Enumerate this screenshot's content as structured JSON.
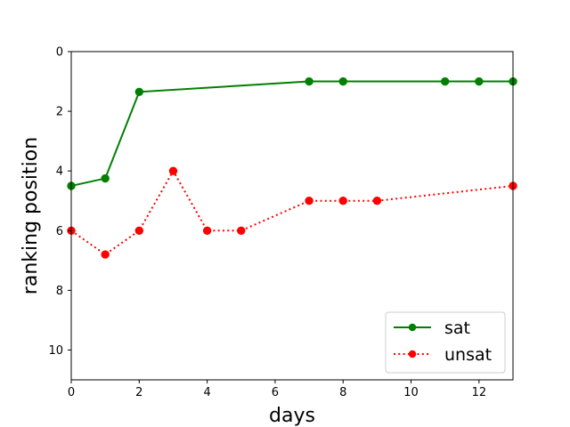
{
  "chart_data": {
    "type": "line",
    "title": "",
    "xlabel": "days",
    "ylabel": "ranking position",
    "xlim": [
      0,
      13
    ],
    "ylim": [
      0,
      11
    ],
    "y_inverted": true,
    "xticks": [
      0,
      2,
      4,
      6,
      8,
      10,
      12
    ],
    "yticks": [
      0,
      2,
      4,
      6,
      8,
      10
    ],
    "grid": false,
    "legend_position": "lower-right",
    "series": [
      {
        "name": "sat",
        "color": "#008000",
        "line_style": "solid",
        "marker": "circle",
        "x": [
          0,
          1,
          2,
          7,
          8,
          11,
          12,
          13
        ],
        "y": [
          4.5,
          4.25,
          1.35,
          1.0,
          1.0,
          1.0,
          1.0,
          1.0
        ]
      },
      {
        "name": "unsat",
        "color": "#ff0000",
        "line_style": "dotted",
        "marker": "circle",
        "x": [
          0,
          1,
          2,
          3,
          4,
          5,
          7,
          8,
          9,
          13
        ],
        "y": [
          6.0,
          6.8,
          6.0,
          4.0,
          6.0,
          6.0,
          5.0,
          5.0,
          5.0,
          4.5
        ]
      }
    ]
  }
}
